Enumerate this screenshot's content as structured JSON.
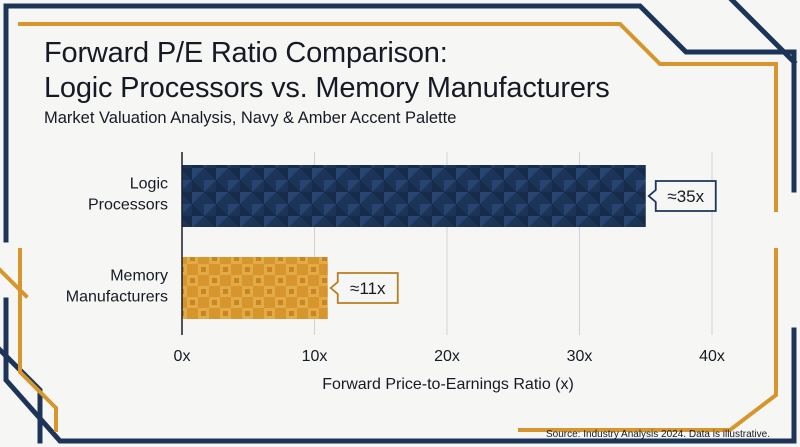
{
  "chart_data": {
    "type": "bar",
    "orientation": "horizontal",
    "title_lines": [
      "Forward P/E Ratio Comparison:",
      "Logic Processors vs. Memory Manufacturers"
    ],
    "subtitle": "Market Valuation Analysis, Navy & Amber Accent Palette",
    "categories": [
      [
        "Logic",
        "Processors"
      ],
      [
        "Memory",
        "Manufacturers"
      ]
    ],
    "values": [
      35,
      11
    ],
    "data_labels": [
      "≈35x",
      "≈11x"
    ],
    "bar_colors": [
      "#1d3459",
      "#d6962d"
    ],
    "xlabel": "Forward Price-to-Earnings Ratio (x)",
    "xlim": [
      0,
      40
    ],
    "xticks": [
      0,
      10,
      20,
      30,
      40
    ],
    "xtick_labels": [
      "0x",
      "10x",
      "20x",
      "30x",
      "40x"
    ],
    "grid": true,
    "source": "Source: Industry Analysis 2024. Data is illustrative."
  },
  "colors": {
    "navy": "#1d3459",
    "amber": "#d6962d",
    "background": "#f6f6f4",
    "text": "#151a24"
  }
}
